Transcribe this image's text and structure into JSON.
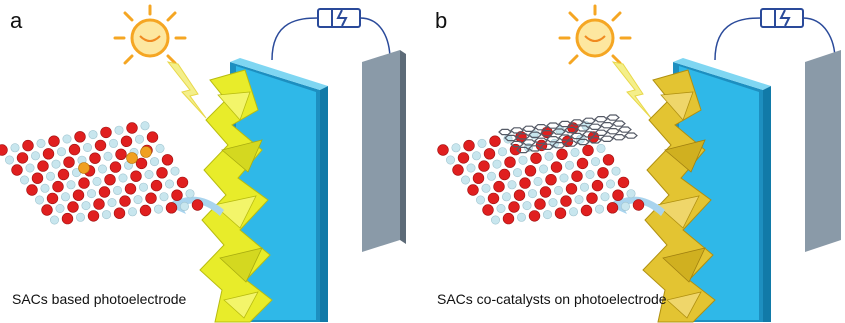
{
  "panels": [
    {
      "letter": "a",
      "caption": "SACs based photoelectrode",
      "lattice_style": "single-atoms"
    },
    {
      "letter": "b",
      "caption": "SACs co-catalysts on photoelectrode",
      "lattice_style": "graphene-overlayer"
    }
  ],
  "colors": {
    "electrode_blue": "#2fb8e8",
    "electrode_blue_dark": "#1d8fc0",
    "semiconductor_yellow_a": "#e8ec2a",
    "semiconductor_yellow_b": "#e3c432",
    "counter_electrode": "#8a9aa8",
    "oxygen_atom": "#e01f1f",
    "host_atom": "#c8e6ee",
    "single_atom": "#f0a020",
    "sun": "#f5a623",
    "wire": "#2a4a9a"
  }
}
